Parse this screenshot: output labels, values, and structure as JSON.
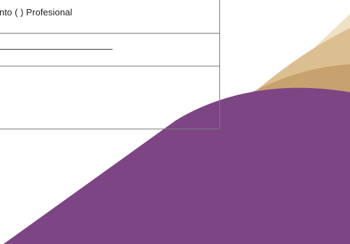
{
  "form": {
    "rows": [
      {
        "text": "nto (  ) Profesional"
      },
      {
        "text": ""
      },
      {
        "text": ""
      }
    ]
  },
  "colors": {
    "purple": "#7e4585",
    "gold_light": "#ead6b3",
    "gold_mid": "#d9b98a",
    "gold_dark": "#c9a06a",
    "border": "#7a7a7a"
  }
}
